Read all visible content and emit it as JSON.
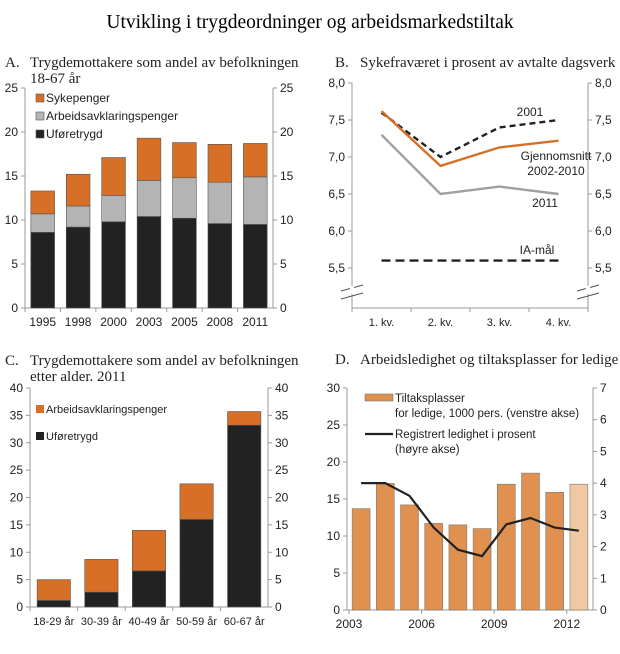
{
  "title": "Utvikling i trygdeordninger og arbeidsmarkedstiltak",
  "colors": {
    "orange": "#d86f27",
    "grey": "#b4b4b4",
    "black": "#222222",
    "bar_d": "#e0914f",
    "bar_d_light": "#f0c8a2",
    "axis": "#9a9a9a"
  },
  "chart_data": [
    {
      "id": "A",
      "letter": "A.",
      "title": "Trygdemottakere som andel av befolkningen",
      "title2": "18-67 år",
      "type": "bar",
      "stacked": true,
      "categories": [
        "1995",
        "1998",
        "2000",
        "2003",
        "2005",
        "2008",
        "2011"
      ],
      "ylim": [
        0,
        25
      ],
      "yticks": [
        "0",
        "5",
        "10",
        "15",
        "20",
        "25"
      ],
      "legend_placement": "top-left",
      "series": [
        {
          "name": "Uføretrygd",
          "color": "#222222",
          "values": [
            8.6,
            9.2,
            9.8,
            10.4,
            10.2,
            9.6,
            9.5
          ]
        },
        {
          "name": "Arbeidsavklaringspenger",
          "color": "#b4b4b4",
          "values": [
            2.1,
            2.4,
            3.0,
            4.1,
            4.6,
            4.7,
            5.4
          ]
        },
        {
          "name": "Sykepenger",
          "color": "#d86f27",
          "values": [
            2.6,
            3.6,
            4.3,
            4.8,
            4.0,
            4.3,
            3.8
          ]
        }
      ]
    },
    {
      "id": "B",
      "letter": "B.",
      "title": "Sykefraværet i prosent av avtalte dagsverk",
      "type": "line",
      "categories": [
        "1. kv.",
        "2. kv.",
        "3. kv.",
        "4. kv."
      ],
      "ylim": [
        5.5,
        8.0
      ],
      "yticks": [
        "5,5",
        "6,0",
        "6,5",
        "7,0",
        "7,5",
        "8,0"
      ],
      "axis_break": true,
      "series": [
        {
          "name": "2001",
          "color": "#222222",
          "dash": true,
          "values": [
            7.6,
            7.0,
            7.4,
            7.5
          ]
        },
        {
          "name": "Gjennomsnitt",
          "name2": "2002-2010",
          "color": "#d86f27",
          "values": [
            7.62,
            6.88,
            7.13,
            7.22
          ]
        },
        {
          "name": "2011",
          "color": "#a0a0a0",
          "values": [
            7.3,
            6.5,
            6.6,
            6.5
          ]
        },
        {
          "name": "IA-mål",
          "color": "#222222",
          "dash": true,
          "values": [
            5.6,
            5.6,
            5.6,
            5.6
          ]
        }
      ]
    },
    {
      "id": "C",
      "letter": "C.",
      "title": "Trygdemottakere som andel av befolkningen",
      "title2": "etter alder. 2011",
      "type": "bar",
      "stacked": true,
      "categories": [
        "18-29 år",
        "30-39 år",
        "40-49 år",
        "50-59 år",
        "60-67 år"
      ],
      "ylim": [
        0,
        40
      ],
      "yticks": [
        "0",
        "5",
        "10",
        "15",
        "20",
        "25",
        "30",
        "35",
        "40"
      ],
      "legend_placement": "top-left",
      "series": [
        {
          "name": "Uføretrygd",
          "color": "#222222",
          "values": [
            1.2,
            2.7,
            6.6,
            16.0,
            33.2
          ]
        },
        {
          "name": "Arbeidsavklaringspenger",
          "color": "#d86f27",
          "values": [
            3.8,
            6.0,
            7.4,
            6.5,
            2.5
          ]
        }
      ]
    },
    {
      "id": "D",
      "letter": "D.",
      "title": "Arbeidsledighet og tiltaksplasser for ledige",
      "type": "bar+line",
      "x": [
        "2003",
        "2004",
        "2005",
        "2006",
        "2007",
        "2008",
        "2009",
        "2010",
        "2011",
        "2012"
      ],
      "xticklabels": [
        "2003",
        "2006",
        "2009",
        "2012"
      ],
      "ylim_left": [
        0,
        30
      ],
      "ylim_right": [
        0,
        7
      ],
      "yticks_left": [
        "0",
        "5",
        "10",
        "15",
        "20",
        "25",
        "30"
      ],
      "yticks_right": [
        "0",
        "1",
        "2",
        "3",
        "4",
        "5",
        "6",
        "7"
      ],
      "series": [
        {
          "name": "Tiltaksplasser",
          "name2": "for ledige, 1000 pers. (venstre akse)",
          "axis": "left",
          "color": "#e0914f",
          "values": [
            13.7,
            17.1,
            14.2,
            11.7,
            11.5,
            11.0,
            17.0,
            18.5,
            15.9,
            17.0
          ]
        },
        {
          "name": "Registrert ledighet i prosent",
          "name2": "(høyre akse)",
          "axis": "right",
          "color": "#222222",
          "values": [
            4.0,
            4.0,
            3.6,
            2.6,
            1.9,
            1.7,
            2.7,
            2.9,
            2.6,
            2.5
          ]
        }
      ]
    }
  ]
}
